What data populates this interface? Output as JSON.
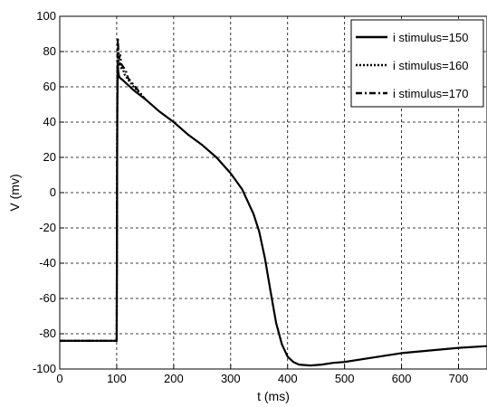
{
  "chart_data": {
    "type": "line",
    "title": "",
    "xlabel": "t (ms)",
    "ylabel": "V (mv)",
    "xlim": [
      0,
      750
    ],
    "ylim": [
      -100,
      100
    ],
    "xticks": [
      0,
      100,
      200,
      300,
      400,
      500,
      600,
      700
    ],
    "yticks": [
      100,
      80,
      60,
      40,
      20,
      0,
      -20,
      -40,
      -60,
      -80,
      -100
    ],
    "grid": true,
    "grid_style": "dashed",
    "legend_position": "top-right",
    "series": [
      {
        "name": "i stimulus=150",
        "line_style": "solid",
        "color": "#000000",
        "x": [
          0,
          99,
          100,
          101,
          102,
          103,
          104,
          106,
          110,
          120,
          130,
          150,
          175,
          200,
          225,
          250,
          275,
          300,
          320,
          340,
          350,
          360,
          370,
          380,
          390,
          400,
          410,
          420,
          440,
          460,
          480,
          500,
          550,
          600,
          650,
          700,
          750
        ],
        "y": [
          -84,
          -84,
          -84,
          50,
          72,
          68,
          66,
          65,
          64,
          61,
          58,
          53,
          46,
          40,
          33,
          27,
          20,
          11,
          2,
          -12,
          -22,
          -37,
          -56,
          -74,
          -86,
          -93,
          -96,
          -97.5,
          -98,
          -97.5,
          -96.5,
          -96,
          -93.5,
          -91,
          -89.5,
          -88,
          -87
        ]
      },
      {
        "name": "i stimulus=160",
        "line_style": "dotted",
        "color": "#000000",
        "x": [
          0,
          99,
          100,
          101,
          102,
          103,
          104,
          106,
          108,
          110,
          114,
          120,
          130,
          150
        ],
        "y": [
          -84,
          -84,
          -84,
          60,
          82,
          76,
          72,
          74,
          70,
          71,
          67,
          64,
          60,
          53
        ]
      },
      {
        "name": "i stimulus=170",
        "line_style": "dashdot",
        "color": "#000000",
        "x": [
          0,
          99,
          100,
          101,
          102,
          103,
          104,
          106,
          108,
          112,
          116,
          120,
          130,
          150
        ],
        "y": [
          -84,
          -84,
          -84,
          70,
          88,
          80,
          76,
          78,
          73,
          71,
          69,
          65,
          61,
          53
        ]
      }
    ]
  }
}
